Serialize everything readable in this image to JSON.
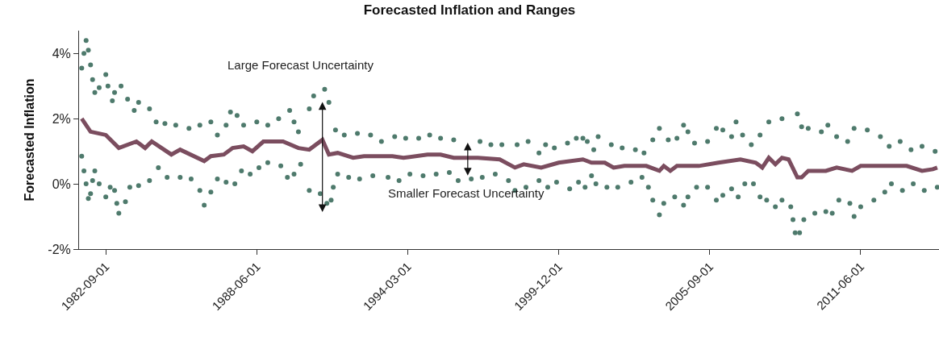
{
  "chart_data": {
    "type": "line",
    "title": "Forecasted Inflation and Ranges",
    "ylabel": "Forecasted Inflation",
    "xlim": [
      "1981-08-25",
      "2014-05-25"
    ],
    "xticks": [
      "1982-09-01",
      "1988-06-01",
      "1994-03-01",
      "1999-12-01",
      "2005-09-01",
      "2011-06-01"
    ],
    "ylim": [
      -2,
      4.7
    ],
    "yticks": [
      {
        "value": -2,
        "label": "-2%"
      },
      {
        "value": 0,
        "label": "0%"
      },
      {
        "value": 2,
        "label": "2%"
      },
      {
        "value": 4,
        "label": "4%"
      }
    ],
    "annotations": [
      "Large Forecast Uncertainty",
      "Smaller Forecast Uncertainty"
    ],
    "series": [
      {
        "type": "scatter",
        "marker": "circle",
        "color": "#4e7a6c",
        "x": [
          "1981-10",
          "1981-11",
          "1981-12",
          "1982-01",
          "1982-02",
          "1982-03",
          "1982-04",
          "1982-06",
          "1982-09",
          "1982-10",
          "1982-12",
          "1983-01",
          "1983-04",
          "1983-07",
          "1983-10",
          "1983-12",
          "1984-05",
          "1984-08",
          "1984-12",
          "1985-05",
          "1985-11",
          "1986-04",
          "1986-09",
          "1986-12",
          "1987-04",
          "1987-06",
          "1987-09",
          "1987-12",
          "1988-06",
          "1988-11",
          "1989-04",
          "1989-09",
          "1989-11",
          "1990-01",
          "1990-06",
          "1990-08",
          "1991-01",
          "1991-03",
          "1991-06",
          "1991-10",
          "1992-04",
          "1992-10",
          "1993-03",
          "1993-09",
          "1994-02",
          "1994-08",
          "1995-01",
          "1995-06",
          "1995-12",
          "1996-12",
          "1997-05",
          "1997-10",
          "1998-05",
          "1998-10",
          "1999-03",
          "1999-06",
          "1999-10",
          "2000-04",
          "2000-08",
          "2000-11",
          "2001-01",
          "2001-04",
          "2001-06",
          "2001-12",
          "2002-05",
          "2002-11",
          "2003-03",
          "2003-07",
          "2003-10",
          "2004-02",
          "2004-06",
          "2004-09",
          "2004-11",
          "2005-02",
          "2005-08",
          "2005-12",
          "2006-03",
          "2006-07",
          "2006-09",
          "2006-12",
          "2007-04",
          "2007-08",
          "2007-12",
          "2008-06",
          "2009-01",
          "2009-03",
          "2009-06",
          "2009-12",
          "2010-03",
          "2010-07",
          "2010-12",
          "2011-03",
          "2011-09",
          "2012-03",
          "2012-07",
          "2012-12",
          "2013-05",
          "2013-10",
          "2014-04"
        ],
        "values": [
          3.55,
          4.0,
          4.4,
          4.1,
          3.65,
          3.2,
          2.8,
          2.95,
          3.35,
          3.0,
          2.55,
          2.8,
          3.0,
          2.6,
          2.25,
          2.5,
          2.3,
          1.9,
          1.85,
          1.8,
          1.7,
          1.8,
          1.9,
          1.5,
          1.8,
          2.2,
          2.1,
          1.8,
          1.9,
          1.8,
          2.0,
          2.25,
          1.9,
          1.6,
          2.3,
          2.7,
          2.9,
          2.5,
          1.65,
          1.5,
          1.55,
          1.5,
          1.3,
          1.45,
          1.4,
          1.4,
          1.5,
          1.4,
          1.35,
          1.3,
          1.2,
          1.2,
          1.2,
          1.3,
          0.95,
          1.2,
          1.1,
          1.25,
          1.4,
          1.4,
          1.3,
          1.05,
          1.45,
          1.2,
          1.1,
          1.05,
          0.95,
          1.35,
          1.7,
          1.35,
          1.4,
          1.8,
          1.6,
          1.25,
          1.3,
          1.7,
          1.65,
          1.45,
          1.9,
          1.5,
          1.2,
          1.5,
          1.9,
          2.0,
          2.15,
          1.75,
          1.7,
          1.6,
          1.8,
          1.45,
          1.3,
          1.7,
          1.65,
          1.45,
          1.15,
          1.3,
          1.05,
          1.15,
          1.0
        ]
      },
      {
        "type": "scatter",
        "marker": "circle",
        "color": "#4e7a6c",
        "x": [
          "1981-10",
          "1981-11",
          "1981-12",
          "1982-01",
          "1982-02",
          "1982-03",
          "1982-04",
          "1982-06",
          "1982-09",
          "1982-11",
          "1983-01",
          "1983-02",
          "1983-03",
          "1983-06",
          "1983-08",
          "1983-12",
          "1984-05",
          "1984-09",
          "1985-01",
          "1985-07",
          "1985-12",
          "1986-04",
          "1986-06",
          "1986-09",
          "1986-12",
          "1987-04",
          "1987-08",
          "1987-11",
          "1988-03",
          "1988-07",
          "1988-11",
          "1989-05",
          "1989-08",
          "1989-11",
          "1990-02",
          "1990-06",
          "1990-11",
          "1991-02",
          "1991-04",
          "1991-05",
          "1991-07",
          "1991-12",
          "1992-05",
          "1992-11",
          "1993-06",
          "1993-11",
          "1994-04",
          "1994-10",
          "1995-04",
          "1995-10",
          "1996-02",
          "1996-08",
          "1997-01",
          "1997-07",
          "1998-01",
          "1998-04",
          "1998-09",
          "1999-03",
          "1999-07",
          "1999-11",
          "2000-05",
          "2000-09",
          "2000-12",
          "2001-03",
          "2001-05",
          "2001-10",
          "2002-03",
          "2002-09",
          "2003-02",
          "2003-05",
          "2003-07",
          "2003-10",
          "2003-12",
          "2004-05",
          "2004-09",
          "2004-11",
          "2005-03",
          "2005-08",
          "2005-12",
          "2006-03",
          "2006-07",
          "2006-10",
          "2007-01",
          "2007-05",
          "2007-08",
          "2007-11",
          "2008-03",
          "2008-06",
          "2008-10",
          "2008-11",
          "2008-12",
          "2009-02",
          "2009-04",
          "2009-09",
          "2010-02",
          "2010-05",
          "2010-08",
          "2011-01",
          "2011-03",
          "2011-06",
          "2011-12",
          "2012-05",
          "2012-08",
          "2013-01",
          "2013-06",
          "2013-11",
          "2014-05"
        ],
        "values": [
          0.85,
          0.4,
          0.0,
          -0.45,
          -0.3,
          0.1,
          0.4,
          0.0,
          -0.4,
          -0.1,
          -0.2,
          -0.6,
          -0.9,
          -0.55,
          -0.1,
          -0.05,
          0.1,
          0.5,
          0.2,
          0.2,
          0.15,
          -0.2,
          -0.65,
          -0.25,
          0.15,
          0.05,
          0.0,
          0.4,
          0.3,
          0.5,
          0.65,
          0.55,
          0.2,
          0.3,
          0.6,
          -0.2,
          -0.3,
          -0.6,
          -0.5,
          -0.1,
          0.3,
          0.2,
          0.15,
          0.25,
          0.2,
          0.1,
          0.3,
          0.25,
          0.3,
          0.35,
          0.1,
          0.15,
          0.2,
          0.3,
          0.1,
          -0.2,
          -0.1,
          0.1,
          -0.1,
          0.05,
          -0.15,
          0.05,
          -0.1,
          0.25,
          0.0,
          -0.1,
          -0.1,
          0.05,
          0.2,
          -0.1,
          -0.5,
          -0.95,
          -0.6,
          -0.4,
          -0.65,
          -0.4,
          -0.1,
          -0.1,
          -0.5,
          -0.35,
          -0.15,
          -0.4,
          0.0,
          0.0,
          -0.4,
          -0.5,
          -0.7,
          -0.5,
          -0.7,
          -1.1,
          -1.5,
          -1.5,
          -1.1,
          -0.9,
          -0.85,
          -0.9,
          -0.5,
          -0.6,
          -1.0,
          -0.7,
          -0.5,
          -0.25,
          0.0,
          -0.2,
          0.0,
          -0.2,
          -0.1
        ]
      },
      {
        "marker": "none",
        "color": "#7b4d5f",
        "x": [
          "1981-10",
          "1982-02",
          "1982-09",
          "1983-03",
          "1983-11",
          "1984-03",
          "1984-06",
          "1985-03",
          "1985-07",
          "1986-06",
          "1986-09",
          "1987-03",
          "1987-07",
          "1987-12",
          "1988-04",
          "1988-09",
          "1989-06",
          "1990-01",
          "1990-06",
          "1990-12",
          "1991-03",
          "1991-07",
          "1992-02",
          "1992-07",
          "1993-08",
          "1994-01",
          "1994-12",
          "1995-06",
          "1995-12",
          "1996-11",
          "1997-09",
          "1998-04",
          "1998-08",
          "1999-04",
          "1999-12",
          "2000-11",
          "2001-03",
          "2001-09",
          "2002-01",
          "2002-06",
          "2003-04",
          "2003-10",
          "2003-12",
          "2004-03",
          "2004-06",
          "2005-04",
          "2006-01",
          "2006-11",
          "2007-06",
          "2007-09",
          "2007-12",
          "2008-03",
          "2008-06",
          "2008-09",
          "2009-01",
          "2009-03",
          "2009-06",
          "2010-02",
          "2010-07",
          "2011-02",
          "2011-06",
          "2012-05",
          "2013-03",
          "2013-10",
          "2014-03",
          "2014-05"
        ],
        "values": [
          2.0,
          1.6,
          1.5,
          1.1,
          1.3,
          1.1,
          1.3,
          0.9,
          1.05,
          0.7,
          0.85,
          0.9,
          1.1,
          1.15,
          1.0,
          1.3,
          1.3,
          1.1,
          1.05,
          1.35,
          0.9,
          0.95,
          0.8,
          0.85,
          0.85,
          0.8,
          0.9,
          0.9,
          0.8,
          0.8,
          0.75,
          0.5,
          0.6,
          0.5,
          0.65,
          0.75,
          0.65,
          0.65,
          0.5,
          0.55,
          0.55,
          0.4,
          0.55,
          0.4,
          0.55,
          0.55,
          0.65,
          0.75,
          0.65,
          0.5,
          0.8,
          0.6,
          0.8,
          0.75,
          0.2,
          0.2,
          0.4,
          0.4,
          0.5,
          0.4,
          0.55,
          0.55,
          0.55,
          0.4,
          0.45,
          0.5
        ]
      }
    ]
  }
}
